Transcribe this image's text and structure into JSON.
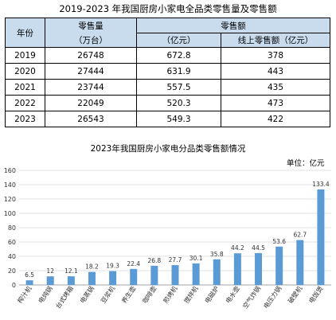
{
  "table": {
    "title": "2019-2023 年我国厨房小家电全品类零售量及零售额",
    "headers": {
      "year": "年份",
      "volume": "零售量",
      "volume_unit": "（万台）",
      "sales": "零售额",
      "sales_unit": "（亿元）",
      "online": "线上零售额（亿元）"
    },
    "rows": [
      {
        "year": "2019",
        "volume": "26748",
        "sales": "672.8",
        "online": "378"
      },
      {
        "year": "2020",
        "volume": "27444",
        "sales": "631.9",
        "online": "443"
      },
      {
        "year": "2021",
        "volume": "23744",
        "sales": "557.5",
        "online": "435"
      },
      {
        "year": "2022",
        "volume": "22049",
        "sales": "520.3",
        "online": "473"
      },
      {
        "year": "2023",
        "volume": "26543",
        "sales": "549.3",
        "online": "422"
      }
    ],
    "colors": {
      "header_bg": "#c9dcee",
      "border": "#000000"
    }
  },
  "chart_data": {
    "type": "bar",
    "title": "2023年我国厨房小家电分品类零售额情况",
    "unit_label": "单位：亿元",
    "categories": [
      "榨汁机",
      "电炖锅",
      "台式烤箱",
      "电蒸锅",
      "豆浆机",
      "养生壶",
      "咖啡壶",
      "煎烤机",
      "搅拌机",
      "电磁炉",
      "电水壶",
      "空气炸锅",
      "电压力锅",
      "破壁机",
      "电饭煲"
    ],
    "values": [
      6.5,
      12,
      12.1,
      18.2,
      19.3,
      22.4,
      26.8,
      27.7,
      30.1,
      35.8,
      44.2,
      44.5,
      53.6,
      62.7,
      133.4
    ],
    "ylim": [
      0,
      160
    ],
    "yticks": [
      0,
      20,
      40,
      60,
      80,
      100,
      120,
      140,
      160
    ],
    "grid": true,
    "bar_color": "#5b9bd5",
    "xlabel": "",
    "ylabel": ""
  }
}
